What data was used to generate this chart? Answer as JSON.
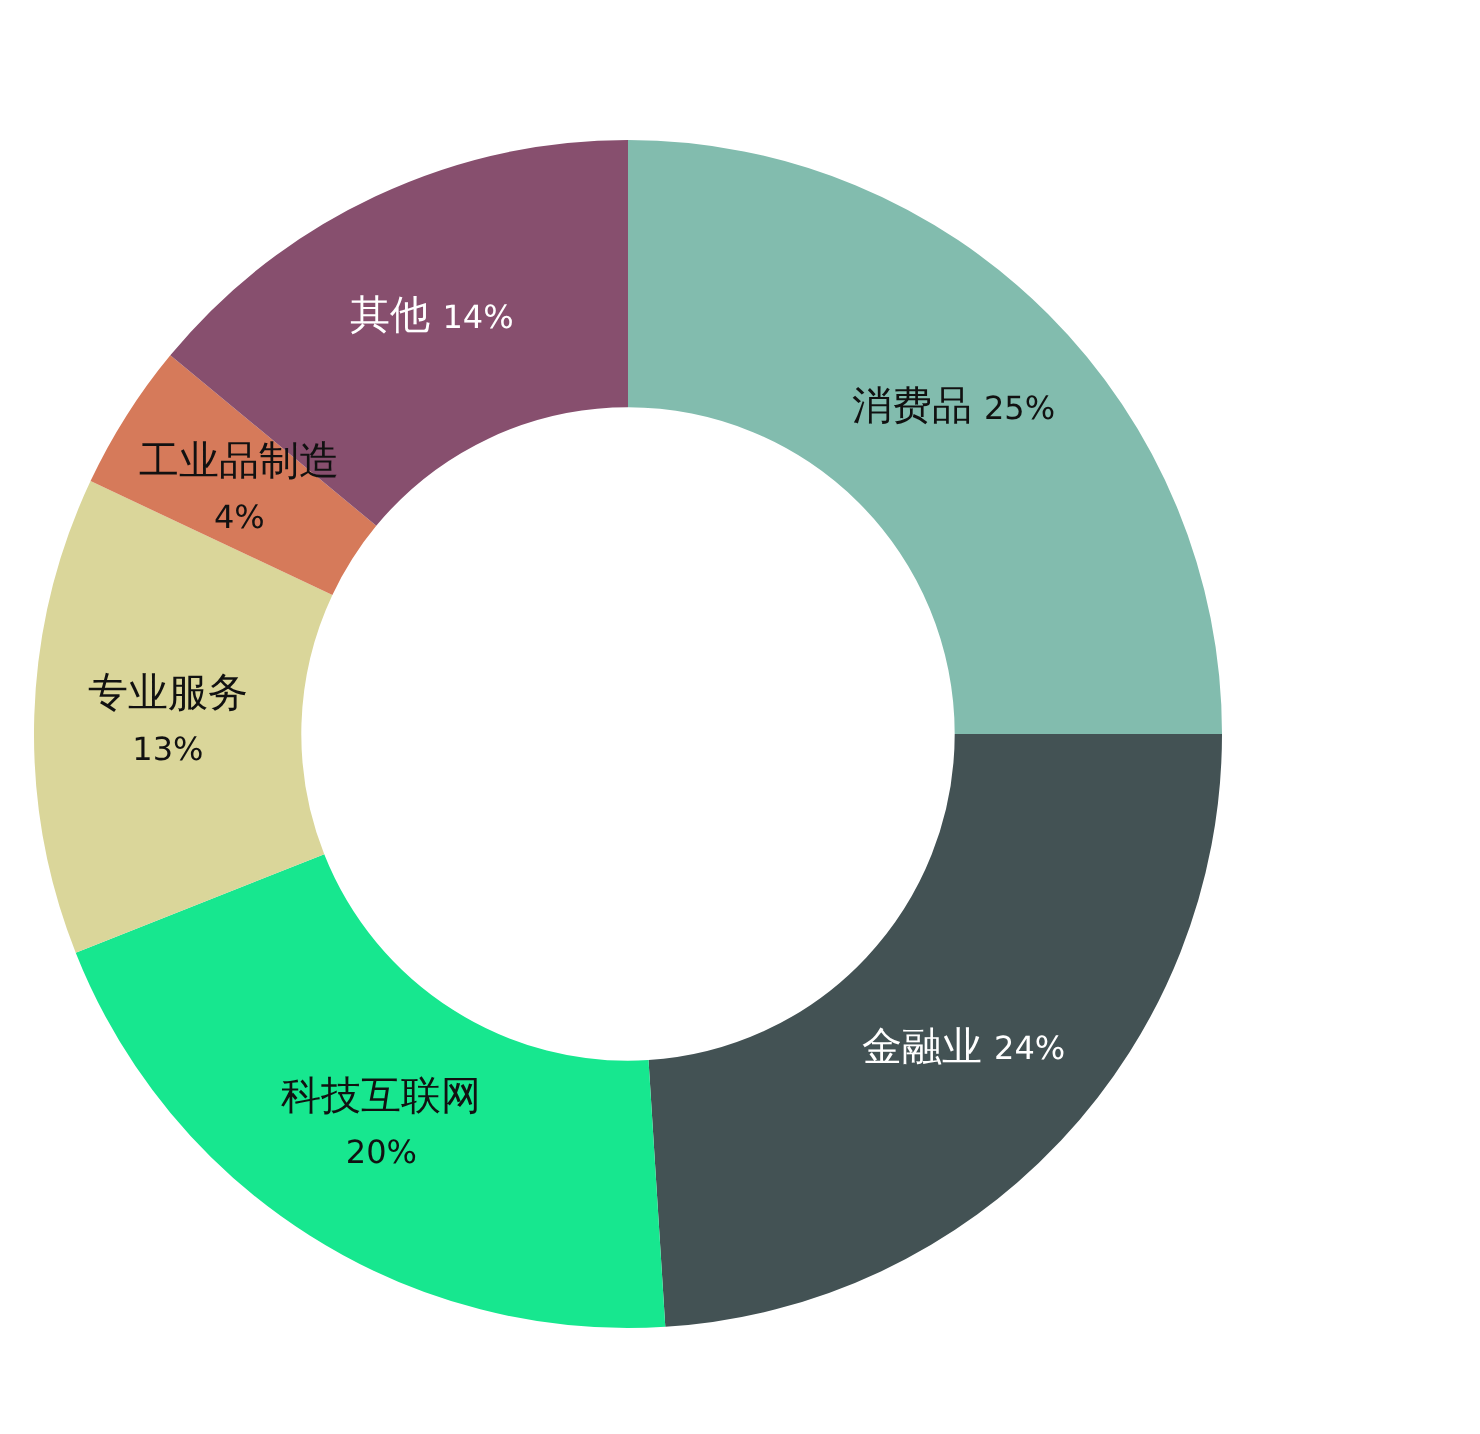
{
  "chart_data": {
    "type": "donut",
    "categories": [
      "消费品",
      "金融业",
      "科技互联网",
      "专业服务",
      "工业品制造",
      "其他"
    ],
    "values": [
      25,
      24,
      20,
      13,
      4,
      14
    ],
    "value_labels": [
      "25%",
      "24%",
      "20%",
      "13%",
      "4%",
      "14%"
    ],
    "colors": [
      "#82bcae",
      "#435254",
      "#17e78f",
      "#dad69a",
      "#d67a5a",
      "#874f6e"
    ],
    "legend": false
  }
}
